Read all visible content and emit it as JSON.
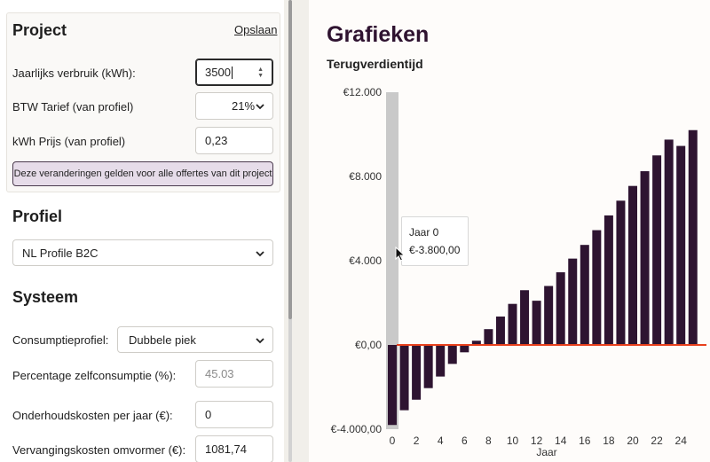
{
  "project": {
    "title": "Project",
    "save_label": "Opslaan",
    "annual_usage_label": "Jaarlijks verbruik (kWh):",
    "annual_usage_value": "3500",
    "vat_label": "BTW Tarief (van profiel)",
    "vat_value": "21%",
    "kwh_price_label": "kWh Prijs (van profiel)",
    "kwh_price_value": "0,23",
    "notice_button": "Deze veranderingen gelden voor alle offertes van dit project"
  },
  "profile": {
    "title": "Profiel",
    "selected": "NL Profile B2C"
  },
  "system": {
    "title": "Systeem",
    "consumption_profile_label": "Consumptieprofiel:",
    "consumption_profile_value": "Dubbele piek",
    "self_consumption_label": "Percentage zelfconsumptie (%):",
    "self_consumption_value": "45.03",
    "maintenance_label": "Onderhoudskosten per jaar (€):",
    "maintenance_value": "0",
    "inverter_label": "Vervangingskosten omvormer (€):",
    "inverter_value": "1081,74"
  },
  "charts": {
    "title": "Grafieken",
    "subtitle": "Terugverdientijd"
  },
  "tooltip": {
    "line1": "Jaar 0",
    "line2": "€-3.800,00"
  },
  "colors": {
    "bar": "#2e1431",
    "zero_line": "#e8401c",
    "highlight": "#c9c9c9"
  },
  "chart_data": {
    "type": "bar",
    "xlabel": "Jaar",
    "ylabel": "",
    "ylim": [
      -4000,
      12000
    ],
    "yticks": [
      "€12.000",
      "€8.000",
      "€4.000",
      "€0,00",
      "€-4.000,00"
    ],
    "ytick_values": [
      12000,
      8000,
      4000,
      0,
      -4000
    ],
    "xticks": [
      "0",
      "2",
      "4",
      "6",
      "8",
      "10",
      "12",
      "14",
      "16",
      "18",
      "20",
      "22",
      "24"
    ],
    "xtick_values": [
      0,
      2,
      4,
      6,
      8,
      10,
      12,
      14,
      16,
      18,
      20,
      22,
      24
    ],
    "x": [
      0,
      1,
      2,
      3,
      4,
      5,
      6,
      7,
      8,
      9,
      10,
      11,
      12,
      13,
      14,
      15,
      16,
      17,
      18,
      19,
      20,
      21,
      22,
      23,
      24,
      25
    ],
    "values": [
      -3800,
      -3100,
      -2600,
      -2050,
      -1500,
      -900,
      -350,
      200,
      750,
      1350,
      1950,
      2600,
      2100,
      2800,
      3450,
      4100,
      4750,
      5450,
      6150,
      6850,
      7550,
      8250,
      9000,
      9750,
      9450,
      10200
    ],
    "highlight_x": 0,
    "grid": false
  }
}
